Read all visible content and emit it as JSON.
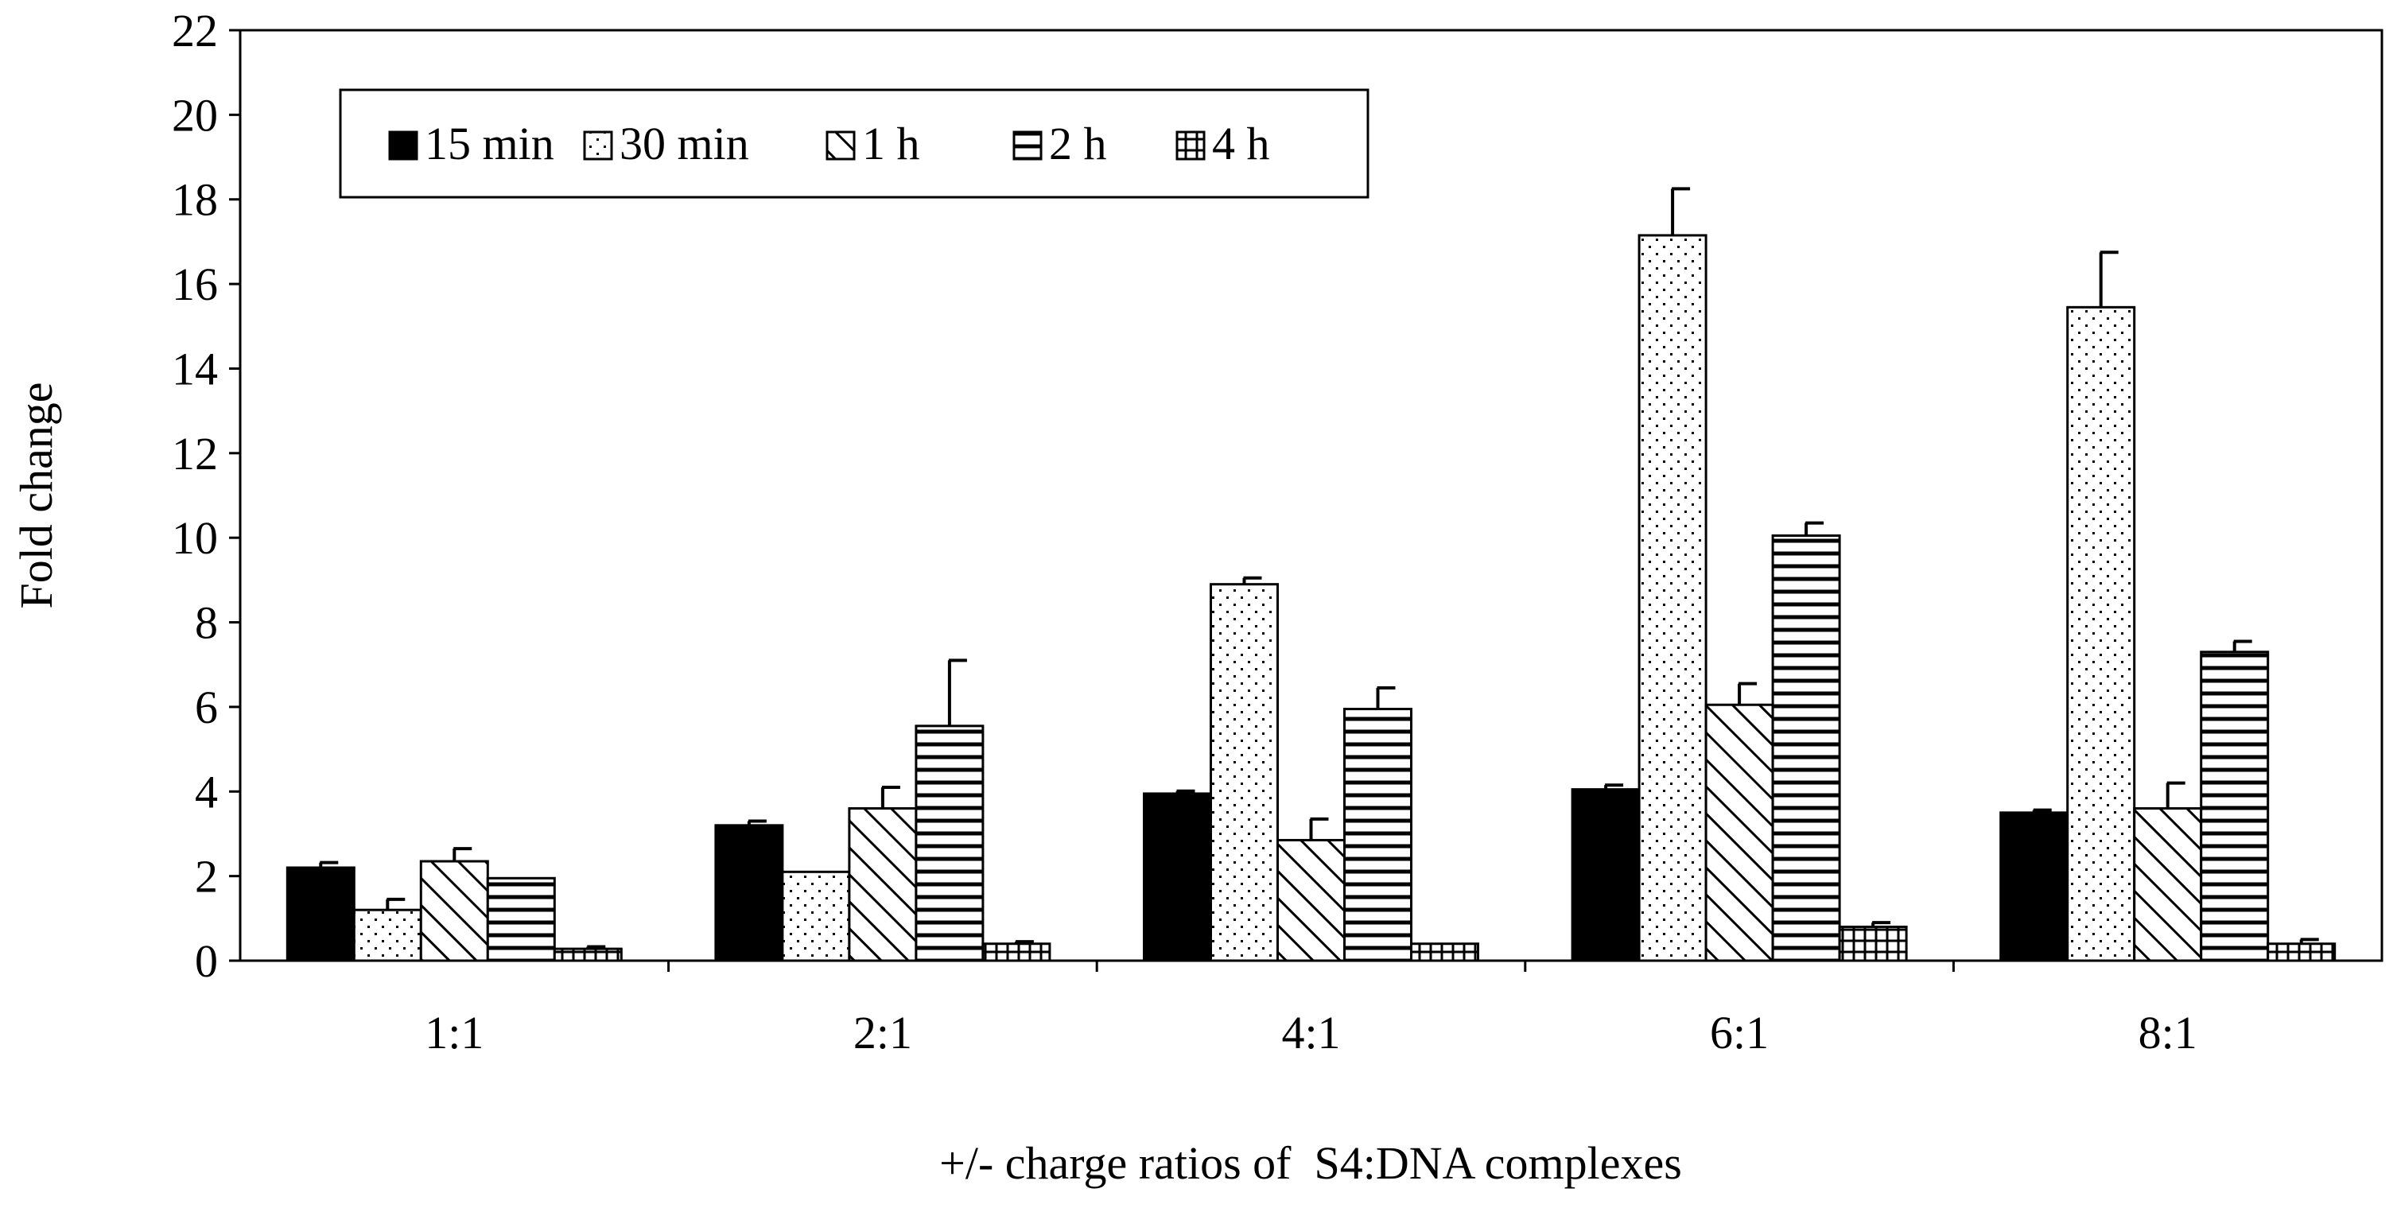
{
  "chart_data": {
    "type": "bar",
    "title": "",
    "xlabel": "+/- charge ratios of  S4:DNA complexes",
    "ylabel": "Fold change",
    "ylim": [
      0,
      22
    ],
    "yticks": [
      "0",
      "2",
      "4",
      "6",
      "8",
      "10",
      "12",
      "14",
      "16",
      "18",
      "20",
      "22"
    ],
    "grid": false,
    "legend_position": "top-left",
    "categories": [
      "1:1",
      "2:1",
      "4:1",
      "6:1",
      "8:1"
    ],
    "series": [
      {
        "name": "15 min",
        "pattern": "solid",
        "values": [
          2.2,
          3.2,
          3.95,
          4.05,
          3.5
        ],
        "errors": [
          0.12,
          0.1,
          0.06,
          0.1,
          0.06
        ]
      },
      {
        "name": "30 min",
        "pattern": "dots",
        "values": [
          1.2,
          2.1,
          8.9,
          17.15,
          15.45
        ],
        "errors": [
          0.25,
          0.0,
          0.15,
          1.1,
          1.3
        ]
      },
      {
        "name": "1 h",
        "pattern": "diagonal",
        "values": [
          2.35,
          3.6,
          2.85,
          6.05,
          3.6
        ],
        "errors": [
          0.3,
          0.5,
          0.5,
          0.5,
          0.6
        ]
      },
      {
        "name": "2 h",
        "pattern": "horizontal",
        "values": [
          1.95,
          5.55,
          5.95,
          10.05,
          7.3
        ],
        "errors": [
          0.0,
          1.55,
          0.5,
          0.3,
          0.25
        ]
      },
      {
        "name": "4 h",
        "pattern": "grid",
        "values": [
          0.28,
          0.4,
          0.4,
          0.8,
          0.4
        ],
        "errors": [
          0.05,
          0.05,
          0.0,
          0.1,
          0.1
        ]
      }
    ]
  }
}
